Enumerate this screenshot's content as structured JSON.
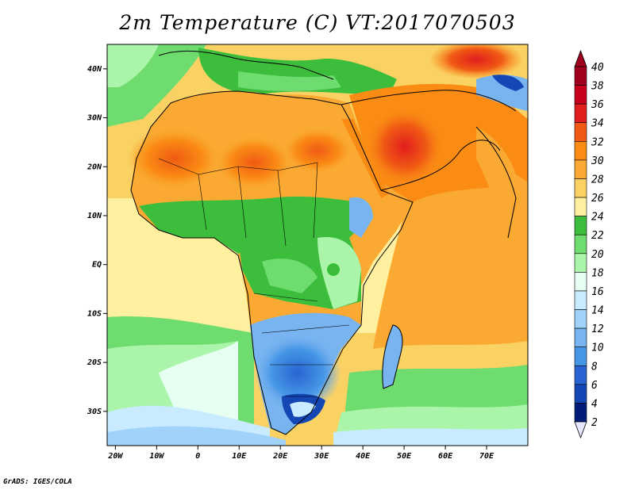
{
  "title": "2m Temperature (C) VT:2017070503",
  "credit": "GrADS: IGES/COLA",
  "map": {
    "type": "filled-contour-map",
    "variable": "2m Temperature (C)",
    "valid_time": "2017070503",
    "lon_range": [
      -22,
      80
    ],
    "lat_range": [
      -37,
      45
    ],
    "lon_ticks": [
      {
        "value": -20,
        "label": "20W"
      },
      {
        "value": -10,
        "label": "10W"
      },
      {
        "value": 0,
        "label": "0"
      },
      {
        "value": 10,
        "label": "10E"
      },
      {
        "value": 20,
        "label": "20E"
      },
      {
        "value": 30,
        "label": "30E"
      },
      {
        "value": 40,
        "label": "40E"
      },
      {
        "value": 50,
        "label": "50E"
      },
      {
        "value": 60,
        "label": "60E"
      },
      {
        "value": 70,
        "label": "70E"
      }
    ],
    "lat_ticks": [
      {
        "value": 40,
        "label": "40N"
      },
      {
        "value": 30,
        "label": "30N"
      },
      {
        "value": 20,
        "label": "20N"
      },
      {
        "value": 10,
        "label": "10N"
      },
      {
        "value": 0,
        "label": "EQ"
      },
      {
        "value": -10,
        "label": "10S"
      },
      {
        "value": -20,
        "label": "20S"
      },
      {
        "value": -30,
        "label": "30S"
      }
    ]
  },
  "colorbar": {
    "labels": [
      "40",
      "38",
      "36",
      "34",
      "32",
      "30",
      "28",
      "26",
      "24",
      "22",
      "20",
      "18",
      "16",
      "14",
      "12",
      "10",
      "8",
      "6",
      "4",
      "2"
    ],
    "top_cap_color": "#a0001e",
    "bottom_cap_color": "#e6e6ff",
    "bins": [
      {
        "range": [
          38,
          40
        ],
        "color": "#a0001e"
      },
      {
        "range": [
          36,
          38
        ],
        "color": "#c8001e"
      },
      {
        "range": [
          34,
          36
        ],
        "color": "#e11e1e"
      },
      {
        "range": [
          32,
          34
        ],
        "color": "#f05a14"
      },
      {
        "range": [
          30,
          32
        ],
        "color": "#fa8c14"
      },
      {
        "range": [
          28,
          30
        ],
        "color": "#faaa32"
      },
      {
        "range": [
          26,
          28
        ],
        "color": "#fad264"
      },
      {
        "range": [
          24,
          26
        ],
        "color": "#fff0a0"
      },
      {
        "range": [
          22,
          24
        ],
        "color": "#3cbe3c"
      },
      {
        "range": [
          20,
          22
        ],
        "color": "#6edc6e"
      },
      {
        "range": [
          18,
          20
        ],
        "color": "#aaf5aa"
      },
      {
        "range": [
          16,
          18
        ],
        "color": "#e6fff2"
      },
      {
        "range": [
          14,
          16
        ],
        "color": "#c8ebff"
      },
      {
        "range": [
          12,
          14
        ],
        "color": "#a0d2fa"
      },
      {
        "range": [
          10,
          12
        ],
        "color": "#78b4f0"
      },
      {
        "range": [
          8,
          10
        ],
        "color": "#4696e6"
      },
      {
        "range": [
          6,
          8
        ],
        "color": "#2864d2"
      },
      {
        "range": [
          4,
          6
        ],
        "color": "#1446b4"
      },
      {
        "range": [
          2,
          4
        ],
        "color": "#001e78"
      }
    ]
  }
}
